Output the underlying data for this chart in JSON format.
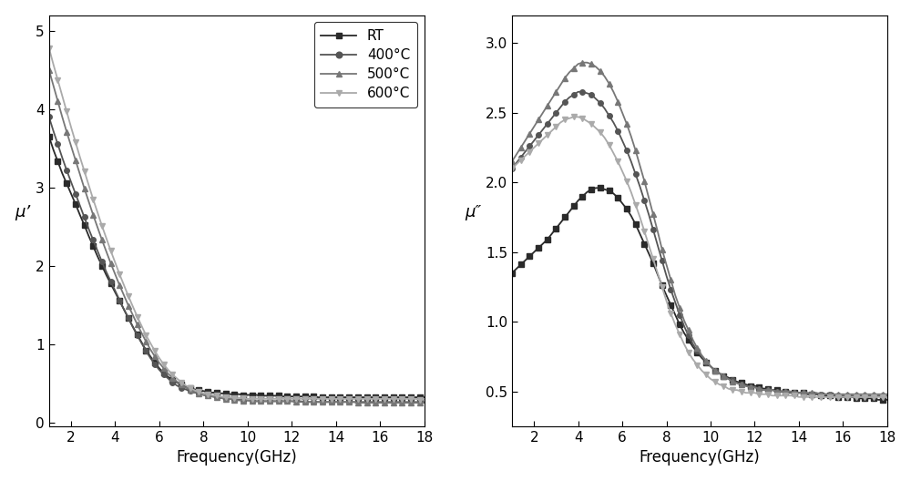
{
  "freq": [
    1.0,
    1.2,
    1.4,
    1.6,
    1.8,
    2.0,
    2.2,
    2.4,
    2.6,
    2.8,
    3.0,
    3.2,
    3.4,
    3.6,
    3.8,
    4.0,
    4.2,
    4.4,
    4.6,
    4.8,
    5.0,
    5.2,
    5.4,
    5.6,
    5.8,
    6.0,
    6.2,
    6.4,
    6.6,
    6.8,
    7.0,
    7.2,
    7.4,
    7.6,
    7.8,
    8.0,
    8.2,
    8.4,
    8.6,
    8.8,
    9.0,
    9.2,
    9.4,
    9.6,
    9.8,
    10.0,
    10.2,
    10.4,
    10.6,
    10.8,
    11.0,
    11.2,
    11.4,
    11.6,
    11.8,
    12.0,
    12.2,
    12.4,
    12.6,
    12.8,
    13.0,
    13.2,
    13.4,
    13.6,
    13.8,
    14.0,
    14.2,
    14.4,
    14.6,
    14.8,
    15.0,
    15.2,
    15.4,
    15.6,
    15.8,
    16.0,
    16.2,
    16.4,
    16.6,
    16.8,
    17.0,
    17.2,
    17.4,
    17.6,
    17.8,
    18.0
  ],
  "mu_prime": {
    "RT": [
      3.65,
      3.48,
      3.33,
      3.18,
      3.05,
      2.92,
      2.79,
      2.65,
      2.52,
      2.38,
      2.25,
      2.12,
      2.0,
      1.88,
      1.77,
      1.66,
      1.55,
      1.44,
      1.33,
      1.22,
      1.12,
      1.02,
      0.92,
      0.84,
      0.76,
      0.69,
      0.63,
      0.58,
      0.54,
      0.51,
      0.48,
      0.46,
      0.44,
      0.42,
      0.41,
      0.4,
      0.39,
      0.38,
      0.38,
      0.37,
      0.37,
      0.36,
      0.36,
      0.36,
      0.35,
      0.35,
      0.35,
      0.35,
      0.34,
      0.34,
      0.34,
      0.34,
      0.34,
      0.33,
      0.33,
      0.33,
      0.33,
      0.33,
      0.33,
      0.33,
      0.33,
      0.32,
      0.32,
      0.32,
      0.32,
      0.32,
      0.32,
      0.32,
      0.32,
      0.32,
      0.32,
      0.32,
      0.32,
      0.32,
      0.32,
      0.32,
      0.32,
      0.32,
      0.32,
      0.32,
      0.32,
      0.32,
      0.32,
      0.32,
      0.32,
      0.32
    ],
    "400C": [
      3.9,
      3.72,
      3.55,
      3.38,
      3.22,
      3.07,
      2.92,
      2.77,
      2.62,
      2.47,
      2.33,
      2.19,
      2.05,
      1.92,
      1.8,
      1.68,
      1.56,
      1.44,
      1.33,
      1.22,
      1.11,
      1.01,
      0.91,
      0.82,
      0.74,
      0.67,
      0.61,
      0.56,
      0.51,
      0.47,
      0.44,
      0.42,
      0.4,
      0.38,
      0.37,
      0.35,
      0.34,
      0.33,
      0.32,
      0.31,
      0.3,
      0.3,
      0.29,
      0.29,
      0.28,
      0.28,
      0.28,
      0.27,
      0.27,
      0.27,
      0.27,
      0.27,
      0.27,
      0.27,
      0.27,
      0.27,
      0.27,
      0.27,
      0.26,
      0.26,
      0.26,
      0.26,
      0.26,
      0.26,
      0.26,
      0.26,
      0.26,
      0.26,
      0.26,
      0.26,
      0.26,
      0.26,
      0.26,
      0.26,
      0.26,
      0.26,
      0.26,
      0.26,
      0.26,
      0.26,
      0.26,
      0.26,
      0.26,
      0.26,
      0.26,
      0.26
    ],
    "500C": [
      4.5,
      4.3,
      4.1,
      3.9,
      3.71,
      3.53,
      3.35,
      3.17,
      2.99,
      2.82,
      2.65,
      2.49,
      2.33,
      2.18,
      2.03,
      1.89,
      1.75,
      1.62,
      1.49,
      1.37,
      1.25,
      1.14,
      1.03,
      0.93,
      0.84,
      0.76,
      0.69,
      0.62,
      0.57,
      0.52,
      0.48,
      0.44,
      0.42,
      0.39,
      0.37,
      0.35,
      0.34,
      0.33,
      0.32,
      0.31,
      0.3,
      0.3,
      0.29,
      0.28,
      0.28,
      0.28,
      0.27,
      0.27,
      0.27,
      0.27,
      0.27,
      0.27,
      0.27,
      0.27,
      0.27,
      0.27,
      0.26,
      0.26,
      0.26,
      0.26,
      0.26,
      0.26,
      0.26,
      0.26,
      0.26,
      0.26,
      0.26,
      0.26,
      0.26,
      0.26,
      0.25,
      0.25,
      0.25,
      0.25,
      0.25,
      0.25,
      0.25,
      0.25,
      0.25,
      0.25,
      0.25,
      0.25,
      0.25,
      0.25,
      0.25,
      0.25
    ],
    "600C": [
      4.78,
      4.57,
      4.37,
      4.17,
      3.97,
      3.77,
      3.58,
      3.39,
      3.21,
      3.03,
      2.85,
      2.68,
      2.51,
      2.35,
      2.19,
      2.04,
      1.89,
      1.75,
      1.61,
      1.48,
      1.35,
      1.23,
      1.11,
      1.01,
      0.91,
      0.82,
      0.74,
      0.67,
      0.61,
      0.56,
      0.51,
      0.47,
      0.44,
      0.41,
      0.39,
      0.37,
      0.36,
      0.35,
      0.34,
      0.33,
      0.32,
      0.32,
      0.31,
      0.31,
      0.31,
      0.3,
      0.3,
      0.3,
      0.3,
      0.3,
      0.3,
      0.3,
      0.3,
      0.3,
      0.3,
      0.3,
      0.3,
      0.3,
      0.3,
      0.3,
      0.3,
      0.3,
      0.3,
      0.3,
      0.3,
      0.3,
      0.3,
      0.3,
      0.3,
      0.3,
      0.3,
      0.3,
      0.3,
      0.3,
      0.3,
      0.3,
      0.3,
      0.3,
      0.3,
      0.3,
      0.3,
      0.3,
      0.3,
      0.3,
      0.29,
      0.29
    ]
  },
  "mu_dblprime": {
    "RT": [
      1.35,
      1.38,
      1.41,
      1.44,
      1.47,
      1.5,
      1.53,
      1.56,
      1.59,
      1.63,
      1.67,
      1.71,
      1.75,
      1.79,
      1.83,
      1.87,
      1.9,
      1.93,
      1.95,
      1.96,
      1.96,
      1.95,
      1.94,
      1.92,
      1.89,
      1.85,
      1.81,
      1.76,
      1.7,
      1.63,
      1.56,
      1.49,
      1.42,
      1.34,
      1.26,
      1.19,
      1.12,
      1.05,
      0.98,
      0.92,
      0.87,
      0.82,
      0.78,
      0.74,
      0.71,
      0.68,
      0.65,
      0.63,
      0.61,
      0.6,
      0.58,
      0.57,
      0.56,
      0.55,
      0.54,
      0.54,
      0.53,
      0.52,
      0.52,
      0.51,
      0.51,
      0.5,
      0.5,
      0.5,
      0.49,
      0.49,
      0.49,
      0.48,
      0.48,
      0.48,
      0.47,
      0.47,
      0.47,
      0.47,
      0.46,
      0.46,
      0.46,
      0.46,
      0.45,
      0.45,
      0.45,
      0.45,
      0.45,
      0.44,
      0.44,
      0.44
    ],
    "400C": [
      2.1,
      2.14,
      2.18,
      2.22,
      2.26,
      2.3,
      2.34,
      2.38,
      2.42,
      2.46,
      2.5,
      2.54,
      2.58,
      2.61,
      2.63,
      2.65,
      2.65,
      2.64,
      2.63,
      2.6,
      2.57,
      2.53,
      2.48,
      2.43,
      2.37,
      2.3,
      2.23,
      2.15,
      2.06,
      1.97,
      1.87,
      1.77,
      1.66,
      1.55,
      1.44,
      1.33,
      1.23,
      1.14,
      1.05,
      0.97,
      0.9,
      0.84,
      0.79,
      0.75,
      0.71,
      0.68,
      0.65,
      0.63,
      0.61,
      0.59,
      0.58,
      0.56,
      0.55,
      0.54,
      0.53,
      0.53,
      0.52,
      0.51,
      0.51,
      0.51,
      0.5,
      0.5,
      0.5,
      0.49,
      0.49,
      0.49,
      0.49,
      0.48,
      0.48,
      0.48,
      0.48,
      0.48,
      0.48,
      0.47,
      0.47,
      0.47,
      0.47,
      0.47,
      0.47,
      0.47,
      0.47,
      0.47,
      0.47,
      0.47,
      0.47,
      0.47
    ],
    "500C": [
      2.15,
      2.2,
      2.25,
      2.3,
      2.35,
      2.4,
      2.45,
      2.5,
      2.55,
      2.6,
      2.65,
      2.7,
      2.75,
      2.79,
      2.82,
      2.85,
      2.86,
      2.86,
      2.85,
      2.83,
      2.8,
      2.76,
      2.71,
      2.65,
      2.58,
      2.5,
      2.42,
      2.33,
      2.23,
      2.12,
      2.01,
      1.89,
      1.77,
      1.65,
      1.52,
      1.41,
      1.3,
      1.19,
      1.1,
      1.01,
      0.94,
      0.87,
      0.81,
      0.76,
      0.72,
      0.68,
      0.65,
      0.63,
      0.61,
      0.59,
      0.57,
      0.56,
      0.55,
      0.54,
      0.53,
      0.53,
      0.52,
      0.51,
      0.51,
      0.51,
      0.5,
      0.5,
      0.5,
      0.5,
      0.49,
      0.49,
      0.49,
      0.49,
      0.49,
      0.49,
      0.48,
      0.48,
      0.48,
      0.48,
      0.48,
      0.48,
      0.48,
      0.48,
      0.48,
      0.48,
      0.48,
      0.48,
      0.48,
      0.48,
      0.48,
      0.48
    ],
    "600C": [
      2.1,
      2.13,
      2.16,
      2.19,
      2.22,
      2.25,
      2.28,
      2.31,
      2.34,
      2.37,
      2.4,
      2.43,
      2.45,
      2.46,
      2.47,
      2.47,
      2.46,
      2.44,
      2.42,
      2.39,
      2.36,
      2.32,
      2.27,
      2.21,
      2.15,
      2.08,
      2.01,
      1.93,
      1.84,
      1.75,
      1.65,
      1.55,
      1.45,
      1.35,
      1.25,
      1.15,
      1.06,
      0.98,
      0.91,
      0.84,
      0.78,
      0.73,
      0.69,
      0.65,
      0.62,
      0.59,
      0.57,
      0.55,
      0.54,
      0.52,
      0.51,
      0.51,
      0.5,
      0.49,
      0.49,
      0.49,
      0.48,
      0.48,
      0.48,
      0.47,
      0.47,
      0.47,
      0.47,
      0.47,
      0.47,
      0.46,
      0.46,
      0.46,
      0.46,
      0.46,
      0.46,
      0.46,
      0.46,
      0.46,
      0.46,
      0.46,
      0.46,
      0.46,
      0.46,
      0.46,
      0.46,
      0.46,
      0.46,
      0.46,
      0.46,
      0.46
    ]
  },
  "colors": {
    "RT": "#2a2a2a",
    "400C": "#555555",
    "500C": "#777777",
    "600C": "#aaaaaa"
  },
  "markers": {
    "RT": "s",
    "400C": "o",
    "500C": "^",
    "600C": "v"
  },
  "labels": {
    "RT": "RT",
    "400C": "400°C",
    "500C": "500°C",
    "600C": "600°C"
  },
  "xlabel": "Frequency(GHz)",
  "ylabel_left": "μ’",
  "ylabel_right": "μ″",
  "ylim_left": [
    -0.05,
    5.2
  ],
  "ylim_right": [
    0.25,
    3.2
  ],
  "yticks_left": [
    0,
    1,
    2,
    3,
    4,
    5
  ],
  "yticks_right": [
    0.5,
    1.0,
    1.5,
    2.0,
    2.5,
    3.0
  ],
  "xticks": [
    2,
    4,
    6,
    8,
    10,
    12,
    14,
    16,
    18
  ],
  "xlim": [
    1,
    18
  ],
  "markersize": 4,
  "linewidth": 1.3,
  "markevery": 2,
  "background_color": "#ffffff"
}
